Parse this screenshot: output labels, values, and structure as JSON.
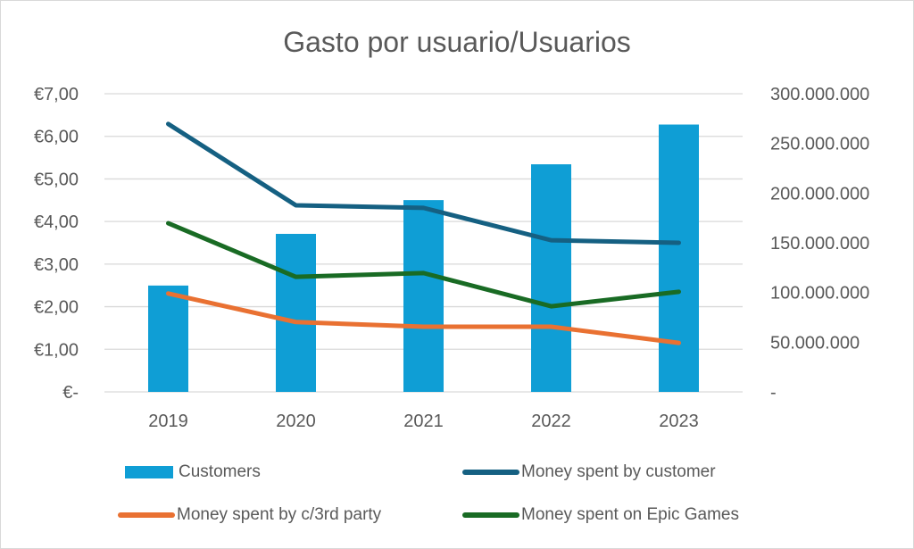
{
  "chart_data": {
    "type": "bar+line",
    "title": "Gasto por usuario/Usuarios",
    "categories": [
      "2019",
      "2020",
      "2021",
      "2022",
      "2023"
    ],
    "left_axis": {
      "ticks": [
        "€-",
        "€1,00",
        "€2,00",
        "€3,00",
        "€4,00",
        "€5,00",
        "€6,00",
        "€7,00"
      ],
      "range": [
        0,
        7
      ]
    },
    "right_axis": {
      "ticks": [
        "-",
        "50.000.000",
        "100.000.000",
        "150.000.000",
        "200.000.000",
        "250.000.000",
        "300.000.000"
      ],
      "range": [
        0,
        300000000
      ]
    },
    "series": [
      {
        "name": "Customers",
        "type": "bar",
        "axis": "right",
        "color": "#0F9ED5",
        "values": [
          107000000,
          159000000,
          193000000,
          229000000,
          269000000
        ]
      },
      {
        "name": "Money spent by customer",
        "type": "line",
        "axis": "left",
        "color": "#156082",
        "values": [
          6.29,
          4.38,
          4.32,
          3.56,
          3.5
        ]
      },
      {
        "name": "Money spent by c/3rd party",
        "type": "line",
        "axis": "left",
        "color": "#E97132",
        "values": [
          2.31,
          1.64,
          1.53,
          1.53,
          1.15
        ]
      },
      {
        "name": "Money spent on Epic Games",
        "type": "line",
        "axis": "left",
        "color": "#196B24",
        "values": [
          3.96,
          2.7,
          2.79,
          2.01,
          2.35
        ]
      }
    ],
    "grid": true,
    "legend_position": "bottom"
  },
  "legend": {
    "items": [
      {
        "label": "Customers"
      },
      {
        "label": "Money spent by customer"
      },
      {
        "label": "Money spent by c/3rd party"
      },
      {
        "label": "Money spent on Epic Games"
      }
    ]
  }
}
